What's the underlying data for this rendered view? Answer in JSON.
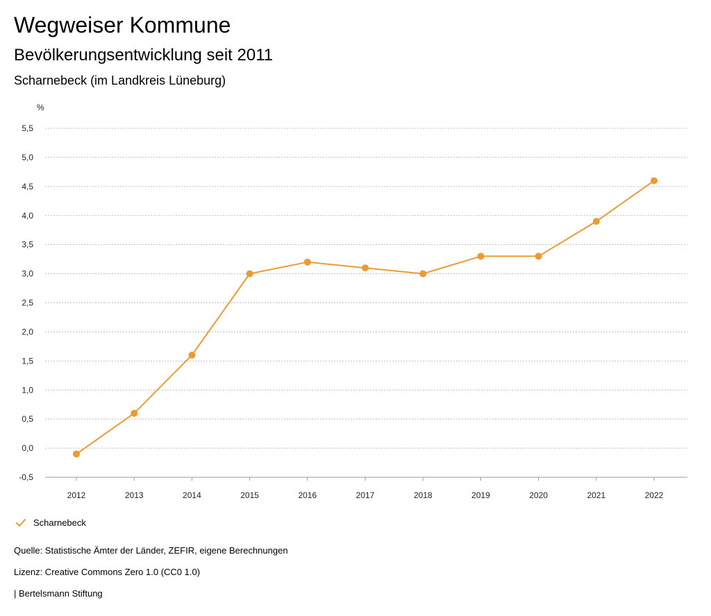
{
  "header": {
    "title": "Wegweiser Kommune",
    "subtitle": "Bevölkerungsentwicklung seit 2011",
    "region": "Scharnebeck (im Landkreis Lüneburg)"
  },
  "chart_data": {
    "type": "line",
    "unit_label": "%",
    "categories": [
      "2012",
      "2013",
      "2014",
      "2015",
      "2016",
      "2017",
      "2018",
      "2019",
      "2020",
      "2021",
      "2022"
    ],
    "series": [
      {
        "name": "Scharnebeck",
        "color": "#EB9A34",
        "values": [
          -0.1,
          0.6,
          1.6,
          3.0,
          3.2,
          3.1,
          3.0,
          3.3,
          3.3,
          3.9,
          4.6
        ]
      }
    ],
    "ylim": [
      -0.5,
      5.5
    ],
    "yticks": [
      -0.5,
      0.0,
      0.5,
      1.0,
      1.5,
      2.0,
      2.5,
      3.0,
      3.5,
      4.0,
      4.5,
      5.0,
      5.5
    ],
    "ytick_labels": [
      "-0,5",
      "0,0",
      "0,5",
      "1,0",
      "1,5",
      "2,0",
      "2,5",
      "3,0",
      "3,5",
      "4,0",
      "4,5",
      "5,0",
      "5,5"
    ],
    "grid": true,
    "legend_position": "bottom-left"
  },
  "legend": {
    "label": "Scharnebeck",
    "icon": "checkmark-icon"
  },
  "footer": {
    "source": "Quelle: Statistische Ämter der Länder, ZEFIR, eigene Berechnungen",
    "license": "Lizenz: Creative Commons Zero 1.0 (CC0 1.0)",
    "publisher": "| Bertelsmann Stiftung"
  }
}
